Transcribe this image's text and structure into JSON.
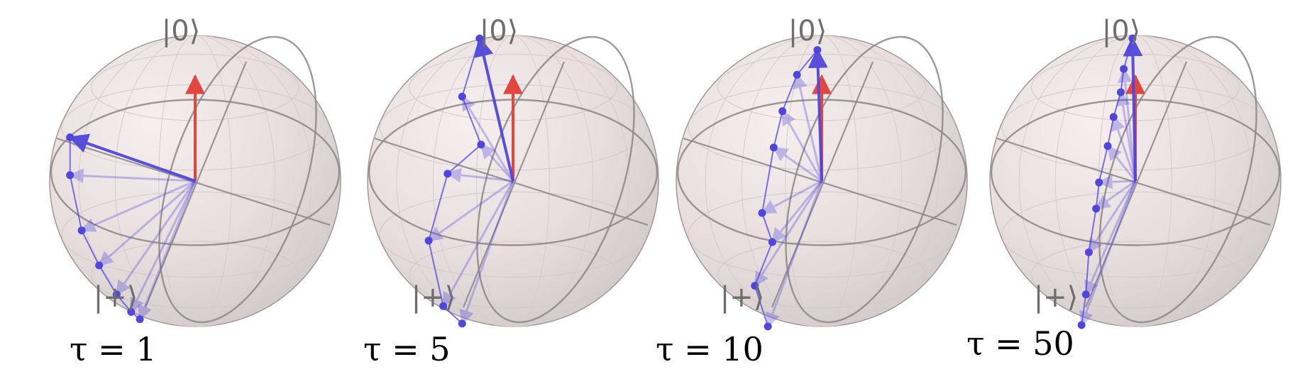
{
  "panels": [
    {
      "tau_label": "τ = 1",
      "points": [
        [
          -0.86,
          0.3
        ],
        [
          -0.86,
          0.04
        ],
        [
          -0.78,
          -0.34
        ],
        [
          -0.66,
          -0.58
        ],
        [
          -0.54,
          -0.78
        ],
        [
          -0.44,
          -0.9
        ],
        [
          -0.38,
          -0.95
        ]
      ]
    },
    {
      "tau_label": "τ = 5",
      "points": [
        [
          -0.23,
          0.98
        ],
        [
          -0.35,
          0.58
        ],
        [
          -0.22,
          0.25
        ],
        [
          -0.45,
          0.05
        ],
        [
          -0.58,
          -0.41
        ],
        [
          -0.48,
          -0.86
        ],
        [
          -0.35,
          -0.98
        ]
      ]
    },
    {
      "tau_label": "τ = 10",
      "points": [
        [
          -0.03,
          0.9
        ],
        [
          -0.17,
          0.73
        ],
        [
          -0.27,
          0.48
        ],
        [
          -0.33,
          0.23
        ],
        [
          -0.41,
          -0.22
        ],
        [
          -0.34,
          -0.42
        ],
        [
          -0.46,
          -0.72
        ],
        [
          -0.37,
          -1.0
        ]
      ]
    },
    {
      "tau_label": "τ = 50",
      "points": [
        [
          -0.02,
          0.98
        ],
        [
          -0.08,
          0.77
        ],
        [
          -0.1,
          0.61
        ],
        [
          -0.15,
          0.44
        ],
        [
          -0.19,
          0.24
        ],
        [
          -0.25,
          -0.01
        ],
        [
          -0.27,
          -0.19
        ],
        [
          -0.32,
          -0.49
        ],
        [
          -0.34,
          -0.78
        ],
        [
          -0.37,
          -0.99
        ]
      ]
    }
  ],
  "labels": {
    "north_pole": "|0⟩",
    "plus_state": "|+⟩"
  },
  "colors": {
    "sphere": "#e8dede",
    "sphere_edge": "#9c9494",
    "grid": "#8c8686",
    "state_vector": "#5046de",
    "reference_vector": "#e2473f"
  }
}
